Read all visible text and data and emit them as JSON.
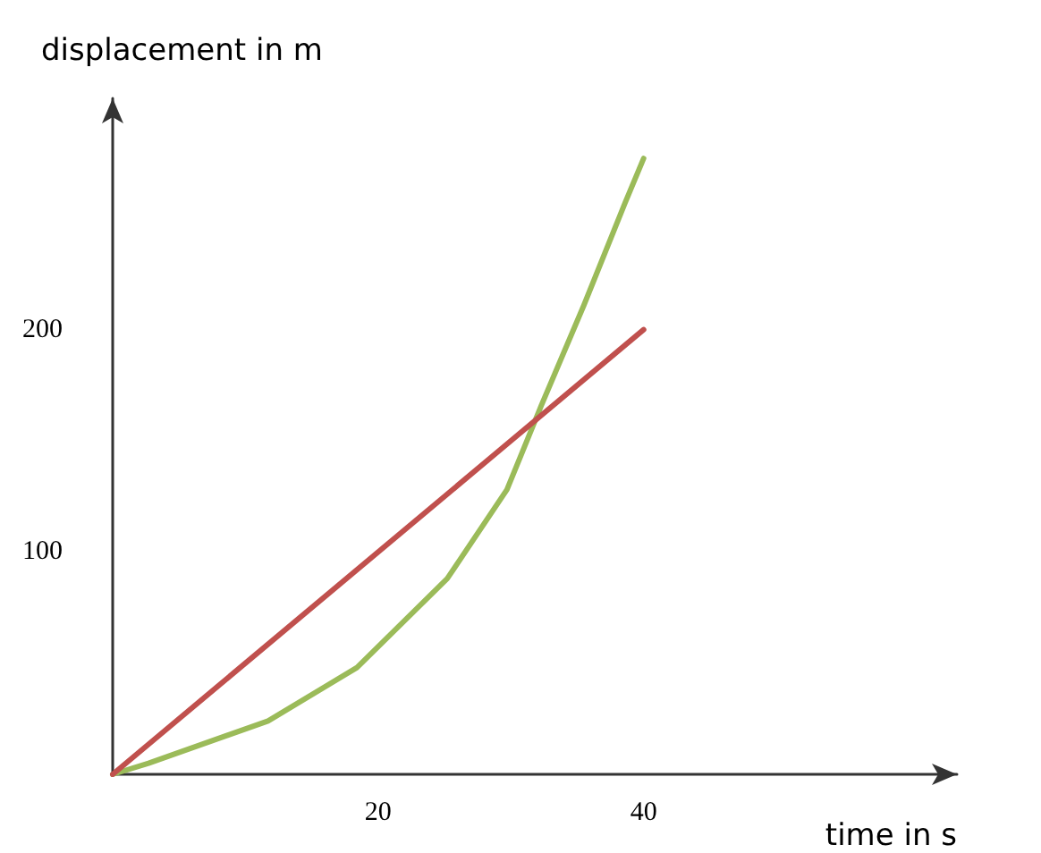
{
  "chart_data": {
    "type": "line",
    "xlabel": "time in s",
    "ylabel": "displacement in m",
    "xlim": [
      0,
      63.6
    ],
    "ylim": [
      0,
      304
    ],
    "xticks": [
      20,
      40
    ],
    "yticks": [
      100,
      200
    ],
    "grid": false,
    "marker": "none",
    "line_style": "solid",
    "series": [
      {
        "color": "#9bbb59",
        "x": [
          0,
          2.7,
          11.7,
          18.4,
          25.2,
          29.7,
          32.3,
          35.5,
          38.6,
          40
        ],
        "values": [
          0,
          5,
          24,
          48,
          88,
          128,
          166,
          211,
          257,
          277
        ]
      },
      {
        "color": "#c0504d",
        "x": [
          0,
          40
        ],
        "values": [
          0,
          200
        ]
      }
    ]
  }
}
